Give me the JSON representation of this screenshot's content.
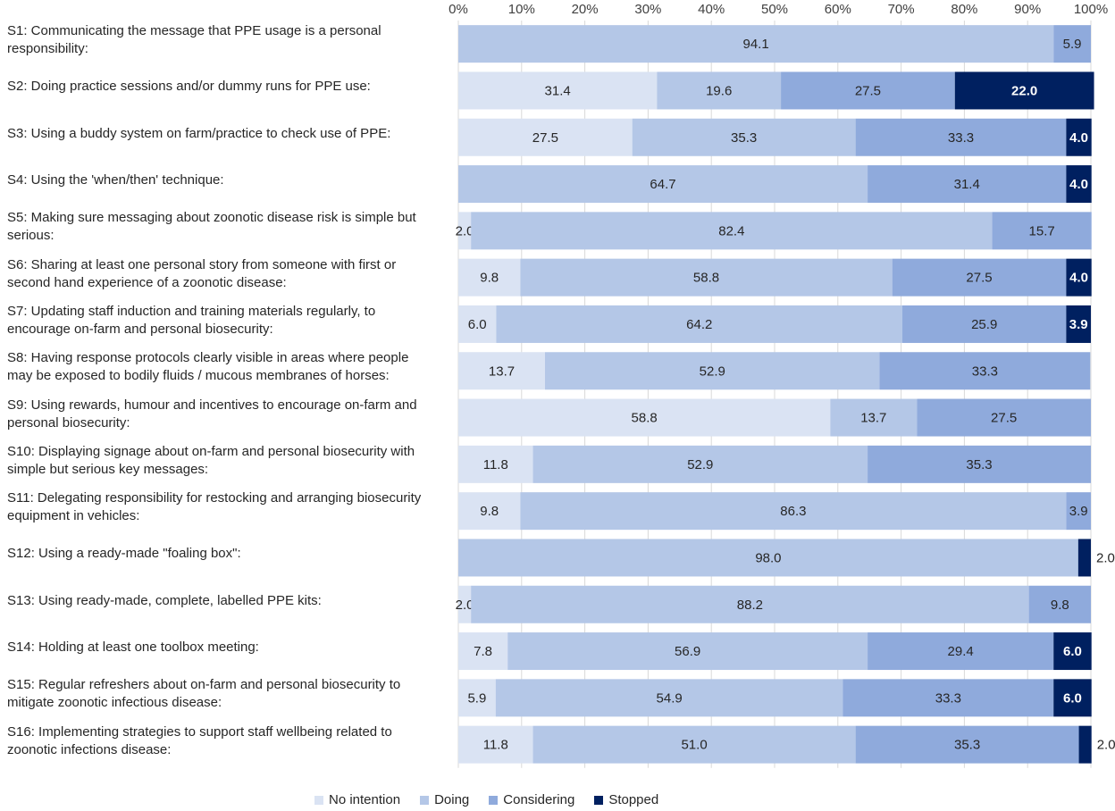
{
  "chart_data": {
    "type": "stacked-bar-horizontal",
    "title": "",
    "xlim": [
      0,
      100
    ],
    "xticks": [
      "0%",
      "10%",
      "20%",
      "30%",
      "40%",
      "50%",
      "60%",
      "70%",
      "80%",
      "90%",
      "100%"
    ],
    "series": [
      {
        "name": "No intention",
        "color": "#dae3f3"
      },
      {
        "name": "Doing",
        "color": "#b4c7e7"
      },
      {
        "name": "Considering",
        "color": "#8faadc"
      },
      {
        "name": "Stopped",
        "color": "#002060"
      }
    ],
    "categories": [
      {
        "label": "S1: Communicating the message that PPE usage is a personal responsibility:",
        "values": [
          0,
          94.1,
          5.9,
          0
        ]
      },
      {
        "label": "S2: Doing practice sessions and/or dummy runs for PPE use:",
        "values": [
          31.4,
          19.6,
          27.5,
          22.0
        ]
      },
      {
        "label": "S3: Using a buddy system on farm/practice to check use of PPE:",
        "values": [
          27.5,
          35.3,
          33.3,
          4.0
        ]
      },
      {
        "label": "S4: Using the 'when/then' technique:",
        "values": [
          0,
          64.7,
          31.4,
          4.0
        ]
      },
      {
        "label": "S5: Making sure messaging about zoonotic disease risk is simple but serious:",
        "values": [
          2.0,
          82.4,
          15.7,
          0
        ]
      },
      {
        "label": "S6: Sharing at least one personal story from someone with first or second hand experience of a zoonotic disease:",
        "values": [
          9.8,
          58.8,
          27.5,
          4.0
        ]
      },
      {
        "label": "S7: Updating staff induction and training materials regularly, to encourage on-farm and personal biosecurity:",
        "values": [
          6.0,
          64.2,
          25.9,
          3.9
        ]
      },
      {
        "label": "S8: Having response protocols clearly visible in areas where people may be exposed to bodily fluids / mucous membranes of horses:",
        "values": [
          13.7,
          52.9,
          33.3,
          0
        ]
      },
      {
        "label": "S9: Using rewards, humour and incentives to encourage on-farm and personal biosecurity:",
        "values": [
          58.8,
          13.7,
          27.5,
          0
        ]
      },
      {
        "label": "S10: Displaying signage about on-farm and personal biosecurity with simple but serious key messages:",
        "values": [
          11.8,
          52.9,
          35.3,
          0
        ]
      },
      {
        "label": "S11: Delegating responsibility for restocking and arranging biosecurity equipment in vehicles:",
        "values": [
          9.8,
          86.3,
          3.9,
          0
        ]
      },
      {
        "label": "S12: Using a ready-made \"foaling box\":",
        "values": [
          0,
          98.0,
          0,
          2.0
        ]
      },
      {
        "label": "S13: Using ready-made, complete, labelled PPE kits:",
        "values": [
          2.0,
          88.2,
          9.8,
          0
        ]
      },
      {
        "label": "S14: Holding at least one toolbox meeting:",
        "values": [
          7.8,
          56.9,
          29.4,
          6.0
        ]
      },
      {
        "label": "S15: Regular refreshers about on-farm and personal biosecurity to mitigate zoonotic infectious disease:",
        "values": [
          5.9,
          54.9,
          33.3,
          6.0
        ]
      },
      {
        "label": "S16: Implementing strategies to support staff wellbeing related to zoonotic infections disease:",
        "values": [
          11.8,
          51.0,
          35.3,
          2.0
        ]
      }
    ]
  }
}
